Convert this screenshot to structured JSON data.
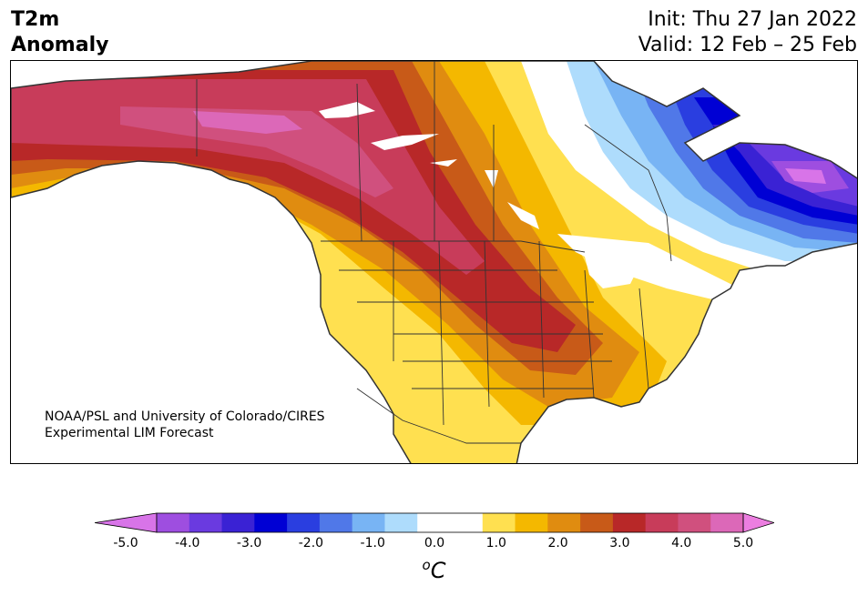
{
  "title": {
    "left_line1": "T2m",
    "left_line2": "Anomaly",
    "init": "Init: Thu 27 Jan 2022",
    "valid": "Valid: 12 Feb – 25 Feb"
  },
  "credit": {
    "line1": "NOAA/PSL and University of Colorado/CIRES",
    "line2": "Experimental LIM Forecast"
  },
  "colorbar": {
    "unit_sup": "o",
    "unit": "C",
    "extend": "both",
    "under_color": "#d874e8",
    "over_color": "#ec7ee0",
    "bin_colors": [
      "#9e4ee0",
      "#6a3ae0",
      "#3a22d4",
      "#0000d4",
      "#2a3ee0",
      "#5078e8",
      "#78b4f4",
      "#aedcfc",
      "#ffffff",
      "#ffffff",
      "#ffe050",
      "#f4b800",
      "#e08c10",
      "#c85a18",
      "#b82828",
      "#c83c5a",
      "#d0507e",
      "#dc68b8"
    ],
    "boundaries": [
      -4.5,
      -4.0,
      -3.5,
      -3.0,
      -2.5,
      -2.0,
      -1.5,
      -1.0,
      -0.5,
      0.0,
      0.5,
      1.0,
      1.5,
      2.0,
      2.5,
      3.0,
      3.5,
      4.0,
      4.5
    ],
    "tick_labels": [
      "-5.0",
      "-4.0",
      "-3.0",
      "-2.0",
      "-1.0",
      "0.0",
      "1.0",
      "2.0",
      "3.0",
      "4.0",
      "5.0"
    ]
  },
  "map": {
    "region": "North America",
    "field": "2 m temperature anomaly",
    "colors": {
      "land_outline": "#333333",
      "water_bodies": "#ffffff"
    }
  }
}
